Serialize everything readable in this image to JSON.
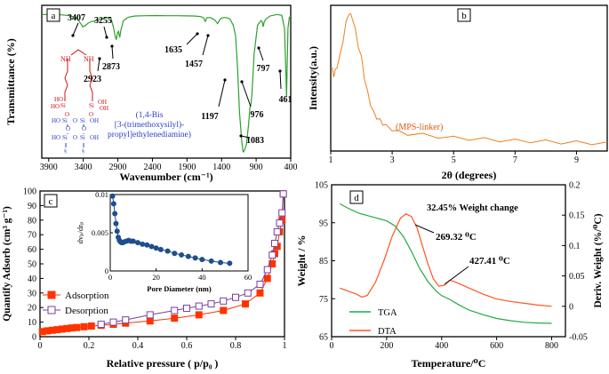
{
  "chart_data": [
    {
      "panel": "a",
      "type": "line",
      "title": "",
      "xlabel": "Wavenumber (cm⁻¹)",
      "ylabel": "Transmittance (%)",
      "xlim": [
        4000,
        400
      ],
      "ylim": [
        0,
        100
      ],
      "xticks": [
        3900,
        3400,
        2900,
        2400,
        1900,
        1400,
        900,
        400
      ],
      "series": [
        {
          "name": "FTIR",
          "color": "#2ca02c",
          "x": [
            4000,
            3900,
            3800,
            3700,
            3600,
            3500,
            3420,
            3407,
            3380,
            3330,
            3280,
            3255,
            3230,
            3150,
            3050,
            3000,
            2960,
            2940,
            2923,
            2905,
            2890,
            2873,
            2855,
            2820,
            2750,
            2650,
            2500,
            2350,
            2200,
            2050,
            1900,
            1800,
            1700,
            1660,
            1635,
            1610,
            1560,
            1500,
            1457,
            1420,
            1380,
            1330,
            1280,
            1230,
            1197,
            1170,
            1140,
            1110,
            1090,
            1083,
            1070,
            1040,
            1010,
            990,
            976,
            960,
            930,
            880,
            830,
            810,
            797,
            785,
            760,
            700,
            600,
            530,
            490,
            470,
            461,
            452,
            440,
            420,
            400
          ],
          "y": [
            94,
            94,
            94,
            93.7,
            93.2,
            92,
            87,
            86,
            86.5,
            88.3,
            89.4,
            89.6,
            89.9,
            91,
            92,
            91.5,
            85,
            80,
            77.5,
            82,
            83,
            79,
            84,
            90,
            92.2,
            93,
            93.2,
            93.3,
            93.2,
            93.2,
            93.1,
            93,
            92.6,
            91.8,
            89.5,
            92,
            92,
            90.5,
            88,
            91,
            92,
            92,
            91,
            87,
            80,
            60,
            30,
            12,
            4.5,
            4,
            5,
            9,
            22,
            33,
            35,
            42,
            68,
            87,
            90,
            89,
            86,
            89,
            91,
            93,
            94,
            93.5,
            85,
            55,
            40,
            60,
            85,
            92,
            93
          ]
        }
      ],
      "annotations": [
        "3407",
        "3255",
        "2873",
        "2923",
        "1635",
        "1457",
        "1197",
        "976",
        "797",
        "461",
        "1083"
      ],
      "molecule": {
        "name_lines": [
          "(1,4-Bis",
          "[3-(trimethoxysilyl)-",
          "propyl]ethylenediamine)"
        ],
        "amine_label": "NH",
        "silanol_labels": [
          "HO",
          "OH",
          "HO",
          "OH",
          "OH",
          "HO",
          "OH",
          "HO",
          "OH"
        ],
        "si_label": "Si",
        "o_label": "O"
      }
    },
    {
      "panel": "b",
      "type": "line",
      "xlabel": "2θ (degrees)",
      "ylabel": "Intensity(a.u.)",
      "xlim": [
        1,
        10
      ],
      "xticks": [
        1,
        3,
        5,
        7,
        9
      ],
      "series": [
        {
          "name": "MPS-linker",
          "label": "(MPS-linker)",
          "color": "#f07f1d",
          "x": [
            1.0,
            1.05,
            1.1,
            1.15,
            1.2,
            1.3,
            1.4,
            1.5,
            1.6,
            1.65,
            1.7,
            1.8,
            1.9,
            2.0,
            2.1,
            2.2,
            2.3,
            2.4,
            2.5,
            2.6,
            2.7,
            2.8,
            3.0,
            3.2,
            3.5,
            4.0,
            4.5,
            5.0,
            5.5,
            6.0,
            6.5,
            7.0,
            7.5,
            8.0,
            8.5,
            9.0,
            9.5,
            10.0
          ],
          "y": [
            0.58,
            0.56,
            0.52,
            0.55,
            0.58,
            0.65,
            0.76,
            0.88,
            0.95,
            0.93,
            0.92,
            0.83,
            0.72,
            0.64,
            0.5,
            0.4,
            0.32,
            0.26,
            0.23,
            0.21,
            0.19,
            0.17,
            0.15,
            0.13,
            0.12,
            0.11,
            0.1,
            0.09,
            0.085,
            0.08,
            0.075,
            0.07,
            0.068,
            0.065,
            0.06,
            0.058,
            0.055,
            0.05
          ]
        }
      ]
    },
    {
      "panel": "c",
      "type": "line",
      "xlabel": "Relative pressure  ( p/p₀ )",
      "ylabel": "Quantify Adsorb (cm³ g⁻¹)",
      "xlim": [
        0,
        1
      ],
      "ylim": [
        0,
        100
      ],
      "xticks": [
        0,
        0.2,
        0.4,
        0.6,
        0.8,
        1
      ],
      "yticks": [
        0,
        10,
        20,
        30,
        40,
        50,
        60,
        70,
        80,
        90,
        100
      ],
      "series": [
        {
          "name": "Adsorption",
          "color": "#ff3300",
          "marker": "filled-square",
          "x": [
            0.01,
            0.03,
            0.05,
            0.07,
            0.09,
            0.11,
            0.13,
            0.15,
            0.18,
            0.21,
            0.25,
            0.3,
            0.35,
            0.45,
            0.55,
            0.65,
            0.75,
            0.84,
            0.9,
            0.93,
            0.95,
            0.96,
            0.97,
            0.98,
            0.99,
            0.995
          ],
          "y": [
            3.5,
            4,
            4.4,
            4.8,
            5.2,
            5.6,
            6,
            6.3,
            6.8,
            7.3,
            7.8,
            8.5,
            9.3,
            10.8,
            12.7,
            15,
            18,
            22.5,
            30,
            40,
            50,
            57,
            62,
            72,
            80,
            98
          ]
        },
        {
          "name": "Desorption",
          "color": "#7a3fa0",
          "marker": "open-square",
          "x": [
            0.995,
            0.99,
            0.98,
            0.97,
            0.96,
            0.95,
            0.93,
            0.9,
            0.85,
            0.8,
            0.75,
            0.7,
            0.65,
            0.6,
            0.55,
            0.45,
            0.35,
            0.3,
            0.25
          ],
          "y": [
            98,
            85,
            78,
            72,
            64,
            56,
            46,
            36,
            30,
            27,
            24.5,
            22.5,
            21,
            19.5,
            18,
            15,
            11.5,
            10,
            8.5
          ]
        }
      ],
      "legend": [
        "Adsorption",
        "Desorption"
      ],
      "inset": {
        "type": "line",
        "xlabel": "Pore Diameter (nm)",
        "ylabel": "dvₚ/drₚ",
        "xlim": [
          0,
          60
        ],
        "ylim": [
          0,
          0.01
        ],
        "xticks": [
          0,
          20,
          40,
          60
        ],
        "yticks": [
          0,
          0.005,
          0.01
        ],
        "ytick_labels": [
          "0",
          "0.005",
          "0.01"
        ],
        "color": "#1f4e8c",
        "x": [
          1,
          1.5,
          2,
          2.5,
          3,
          3.5,
          4,
          4.5,
          5,
          5.5,
          6,
          7,
          8,
          9,
          10,
          12,
          14,
          16,
          18,
          20,
          22,
          25,
          28,
          31,
          34,
          37,
          40,
          44,
          48,
          52
        ],
        "y": [
          0.0098,
          0.0088,
          0.0075,
          0.0062,
          0.0052,
          0.0044,
          0.004,
          0.0038,
          0.0037,
          0.0037,
          0.0038,
          0.0039,
          0.004,
          0.0039,
          0.0039,
          0.0037,
          0.0035,
          0.0034,
          0.0032,
          0.003,
          0.0028,
          0.0026,
          0.0023,
          0.0021,
          0.0019,
          0.0017,
          0.0015,
          0.0013,
          0.0011,
          0.001
        ]
      }
    },
    {
      "panel": "d",
      "type": "line",
      "xlabel": "Temperature/⁰C",
      "ylabel": "Weight / %",
      "ylabel_right": "Deriv. Weight (%/⁰C)",
      "xlim": [
        0,
        850
      ],
      "ylim": [
        65,
        105
      ],
      "ylim_right": [
        -0.05,
        0.2
      ],
      "xticks": [
        0,
        200,
        400,
        600,
        800
      ],
      "yticks": [
        65,
        75,
        85,
        95,
        105
      ],
      "yticks_right": [
        -0.05,
        0,
        0.05,
        0.1,
        0.15,
        0.2
      ],
      "ytick_labels_right": [
        "-0.05",
        "0",
        "0.05",
        "0.1",
        "0.15",
        "0.2"
      ],
      "annotations": [
        "32.45% Weight change",
        "269.32 ⁰C",
        "427.41 ⁰C"
      ],
      "series": [
        {
          "name": "TGA",
          "color": "#22aa44",
          "axis": "left",
          "x": [
            30,
            60,
            100,
            150,
            200,
            230,
            260,
            290,
            320,
            350,
            380,
            400,
            430,
            460,
            500,
            550,
            600,
            650,
            700,
            750,
            800
          ],
          "y": [
            100,
            98.8,
            97.5,
            96.5,
            95.5,
            94.2,
            91.5,
            87.5,
            83,
            79.5,
            77,
            75.8,
            74.8,
            73.5,
            72,
            70.8,
            69.8,
            69.2,
            68.8,
            68.6,
            68.5
          ]
        },
        {
          "name": "DTA",
          "color": "#ff5522",
          "axis": "right",
          "x": [
            30,
            60,
            90,
            110,
            130,
            160,
            190,
            220,
            250,
            270,
            290,
            310,
            330,
            350,
            370,
            390,
            410,
            430,
            450,
            500,
            550,
            600,
            650,
            700,
            750,
            800
          ],
          "y": [
            0.03,
            0.025,
            0.02,
            0.015,
            0.018,
            0.04,
            0.075,
            0.115,
            0.145,
            0.152,
            0.148,
            0.13,
            0.1,
            0.07,
            0.045,
            0.033,
            0.035,
            0.043,
            0.04,
            0.03,
            0.02,
            0.012,
            0.008,
            0.005,
            0.002,
            0.0
          ]
        }
      ],
      "legend": [
        "TGA",
        "DTA"
      ]
    }
  ],
  "labels": {
    "panel_a": "a",
    "panel_b": "b",
    "panel_c": "c",
    "panel_d": "d"
  }
}
